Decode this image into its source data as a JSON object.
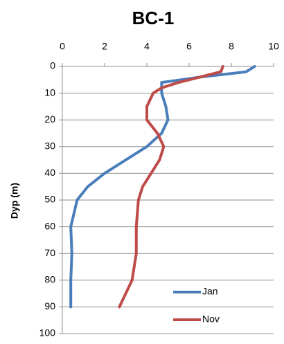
{
  "chart_data": {
    "type": "profile",
    "title": "BC-1",
    "y_label": "Dyp (m)",
    "xlim": [
      0,
      10
    ],
    "xticks": [
      0,
      2,
      4,
      6,
      8,
      10
    ],
    "x_axis_position": "top",
    "ylim": [
      0,
      100
    ],
    "yticks": [
      0,
      10,
      20,
      30,
      40,
      50,
      60,
      70,
      80,
      90,
      100
    ],
    "y_inverted": true,
    "grid": true,
    "legend": "lower right",
    "depths": [
      0,
      2,
      4,
      6,
      8,
      10,
      15,
      20,
      25,
      30,
      35,
      40,
      45,
      50,
      60,
      70,
      80,
      90
    ],
    "series": [
      {
        "name": "Jan",
        "color": "#4a7ebb",
        "values": [
          9.1,
          8.7,
          6.5,
          4.7,
          4.7,
          4.7,
          4.9,
          5.0,
          4.7,
          4.0,
          3.0,
          2.0,
          1.2,
          0.7,
          0.4,
          0.45,
          0.4,
          0.4
        ]
      },
      {
        "name": "Nov",
        "color": "#be4b48",
        "values": [
          7.6,
          7.5,
          6.5,
          5.5,
          4.7,
          4.3,
          4.0,
          4.0,
          4.5,
          4.8,
          4.6,
          4.2,
          3.8,
          3.6,
          3.5,
          3.5,
          3.3,
          2.7
        ]
      }
    ]
  }
}
